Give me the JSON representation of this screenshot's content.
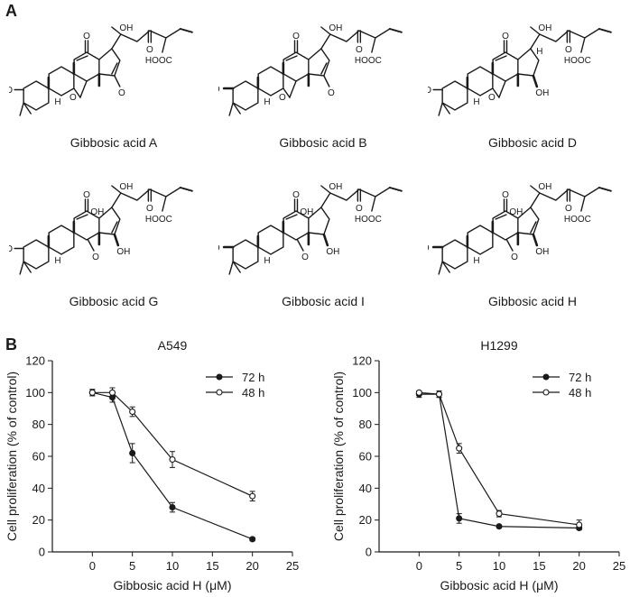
{
  "figure": {
    "panel_a_letter": "A",
    "panel_b_letter": "B"
  },
  "compounds": [
    {
      "name": "Gibbosic acid A",
      "features": [
        "3-oxo",
        "7,8-epoxide",
        "15-oxo",
        "16-ene"
      ]
    },
    {
      "name": "Gibbosic acid B",
      "features": [
        "3-hydroxy",
        "7,8-epoxide",
        "15-oxo",
        "16-ene"
      ]
    },
    {
      "name": "Gibbosic acid D",
      "features": [
        "3-oxo",
        "7,8-epoxide",
        "15-hydroxy",
        "17-H"
      ]
    },
    {
      "name": "Gibbosic acid G",
      "features": [
        "3-oxo",
        "7-oxo",
        "14-hydroxy",
        "15-hydroxy",
        "16-ene"
      ]
    },
    {
      "name": "Gibbosic acid I",
      "features": [
        "3-hydroxy",
        "7-oxo",
        "14-hydroxy",
        "15-hydroxy"
      ]
    },
    {
      "name": "Gibbosic acid H",
      "features": [
        "3-hydroxy",
        "7-oxo",
        "14-hydroxy",
        "15-hydroxy",
        "16-ene"
      ]
    }
  ],
  "atom_labels": {
    "oh": "OH",
    "ho": "HO",
    "o": "O",
    "h": "H",
    "acid": "HOOC"
  },
  "chart_data": [
    {
      "type": "line",
      "title": "A549",
      "xlabel": "Gibbosic acid H (μM)",
      "ylabel": "Cell proliferation (% of control)",
      "xlim": [
        -5,
        25
      ],
      "ylim": [
        0,
        120
      ],
      "xticks": [
        0,
        5,
        10,
        15,
        20,
        25
      ],
      "yticks": [
        0,
        20,
        40,
        60,
        80,
        100,
        120
      ],
      "legend_position": "top-right",
      "series": [
        {
          "name": "72 h",
          "marker": "filled-circle",
          "x": [
            0,
            2.5,
            5,
            10,
            20
          ],
          "y": [
            100,
            97,
            62,
            28,
            8
          ],
          "error": [
            2,
            3,
            6,
            3,
            1
          ]
        },
        {
          "name": "48 h",
          "marker": "open-circle",
          "x": [
            0,
            2.5,
            5,
            10,
            20
          ],
          "y": [
            100,
            100,
            88,
            58,
            35
          ],
          "error": [
            2,
            3,
            3,
            5,
            3
          ]
        }
      ]
    },
    {
      "type": "line",
      "title": "H1299",
      "xlabel": "Gibbosic acid H (μM)",
      "ylabel": "Cell proliferation (% of control)",
      "xlim": [
        -5,
        25
      ],
      "ylim": [
        0,
        120
      ],
      "xticks": [
        0,
        5,
        10,
        15,
        20,
        25
      ],
      "yticks": [
        0,
        20,
        40,
        60,
        80,
        100,
        120
      ],
      "legend_position": "top-right",
      "series": [
        {
          "name": "72 h",
          "marker": "filled-circle",
          "x": [
            0,
            2.5,
            5,
            10,
            20
          ],
          "y": [
            99,
            99,
            21,
            16,
            15
          ],
          "error": [
            2,
            2,
            3,
            1,
            1
          ]
        },
        {
          "name": "48 h",
          "marker": "open-circle",
          "x": [
            0,
            2.5,
            5,
            10,
            20
          ],
          "y": [
            100,
            99,
            65,
            24,
            17
          ],
          "error": [
            1,
            2,
            3,
            2,
            3
          ]
        }
      ]
    }
  ]
}
